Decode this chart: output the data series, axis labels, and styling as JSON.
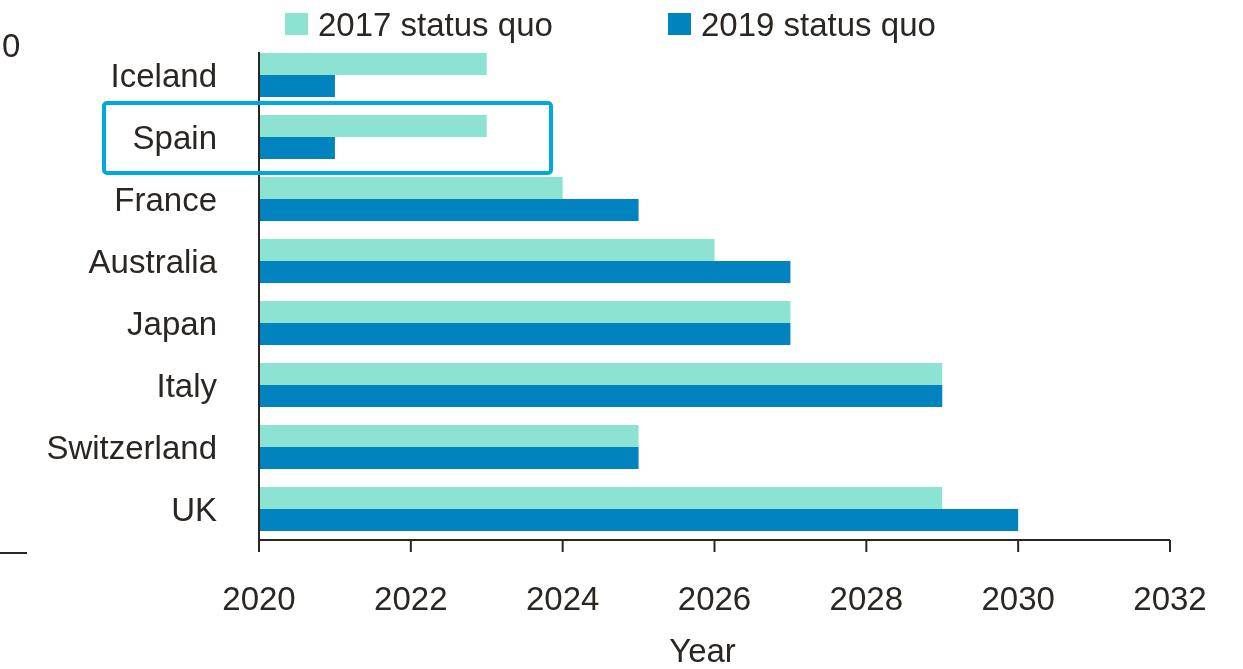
{
  "chart_data": {
    "type": "bar",
    "orientation": "horizontal",
    "xlabel": "Year",
    "categories": [
      "Iceland",
      "Spain",
      "France",
      "Australia",
      "Japan",
      "Italy",
      "Switzerland",
      "UK"
    ],
    "series": [
      {
        "name": "2017 status quo",
        "color": "#8de3d2",
        "values": [
          2023,
          2023,
          2024,
          2026,
          2027,
          2029,
          2025,
          2029
        ]
      },
      {
        "name": "2019 status quo",
        "color": "#0083be",
        "values": [
          2021,
          2021,
          2025,
          2027,
          2027,
          2029,
          2025,
          2030
        ]
      }
    ],
    "xlim": [
      2020,
      2032
    ],
    "xticks": [
      2020,
      2022,
      2024,
      2026,
      2028,
      2030,
      2032
    ],
    "grid": false,
    "legend": "top",
    "annotations": [
      "0"
    ]
  }
}
